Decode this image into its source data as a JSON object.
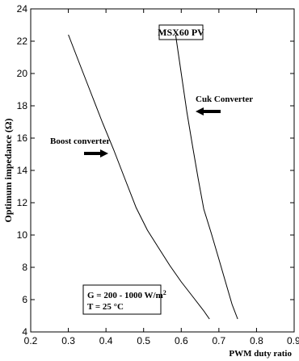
{
  "chart_data": {
    "type": "line",
    "title": "MSX60 PV",
    "xlabel": "PWM duty ratio",
    "ylabel": "Optimum impedance (Ω)",
    "xlim": [
      0.2,
      0.9
    ],
    "ylim": [
      4,
      24
    ],
    "xticks": [
      "0.2",
      "0.3",
      "0.4",
      "0.5",
      "0.6",
      "0.7",
      "0.8",
      "0.9"
    ],
    "yticks": [
      "4",
      "6",
      "8",
      "10",
      "12",
      "14",
      "16",
      "18",
      "20",
      "22",
      "24"
    ],
    "grid": false,
    "series": [
      {
        "name": "Boost converter",
        "x": [
          0.3,
          0.33,
          0.36,
          0.39,
          0.42,
          0.45,
          0.48,
          0.51,
          0.54,
          0.57,
          0.6,
          0.63,
          0.66,
          0.675
        ],
        "y": [
          22.4,
          20.6,
          18.8,
          17.0,
          15.3,
          13.5,
          11.7,
          10.3,
          9.2,
          8.1,
          7.1,
          6.2,
          5.3,
          4.8
        ]
      },
      {
        "name": "Cuk Converter",
        "x": [
          0.585,
          0.6,
          0.615,
          0.63,
          0.645,
          0.66,
          0.68,
          0.7,
          0.72,
          0.735,
          0.75
        ],
        "y": [
          22.4,
          20.0,
          17.6,
          15.5,
          13.5,
          11.6,
          10.1,
          8.5,
          6.9,
          5.7,
          4.8
        ]
      }
    ],
    "annotations": {
      "boost_label": "Boost converter",
      "cuk_label": "Cuk Converter",
      "conditions_g": "G = 200 - 1000 W/m",
      "conditions_g_sup": "2",
      "conditions_t": "T = 25 °C"
    }
  }
}
